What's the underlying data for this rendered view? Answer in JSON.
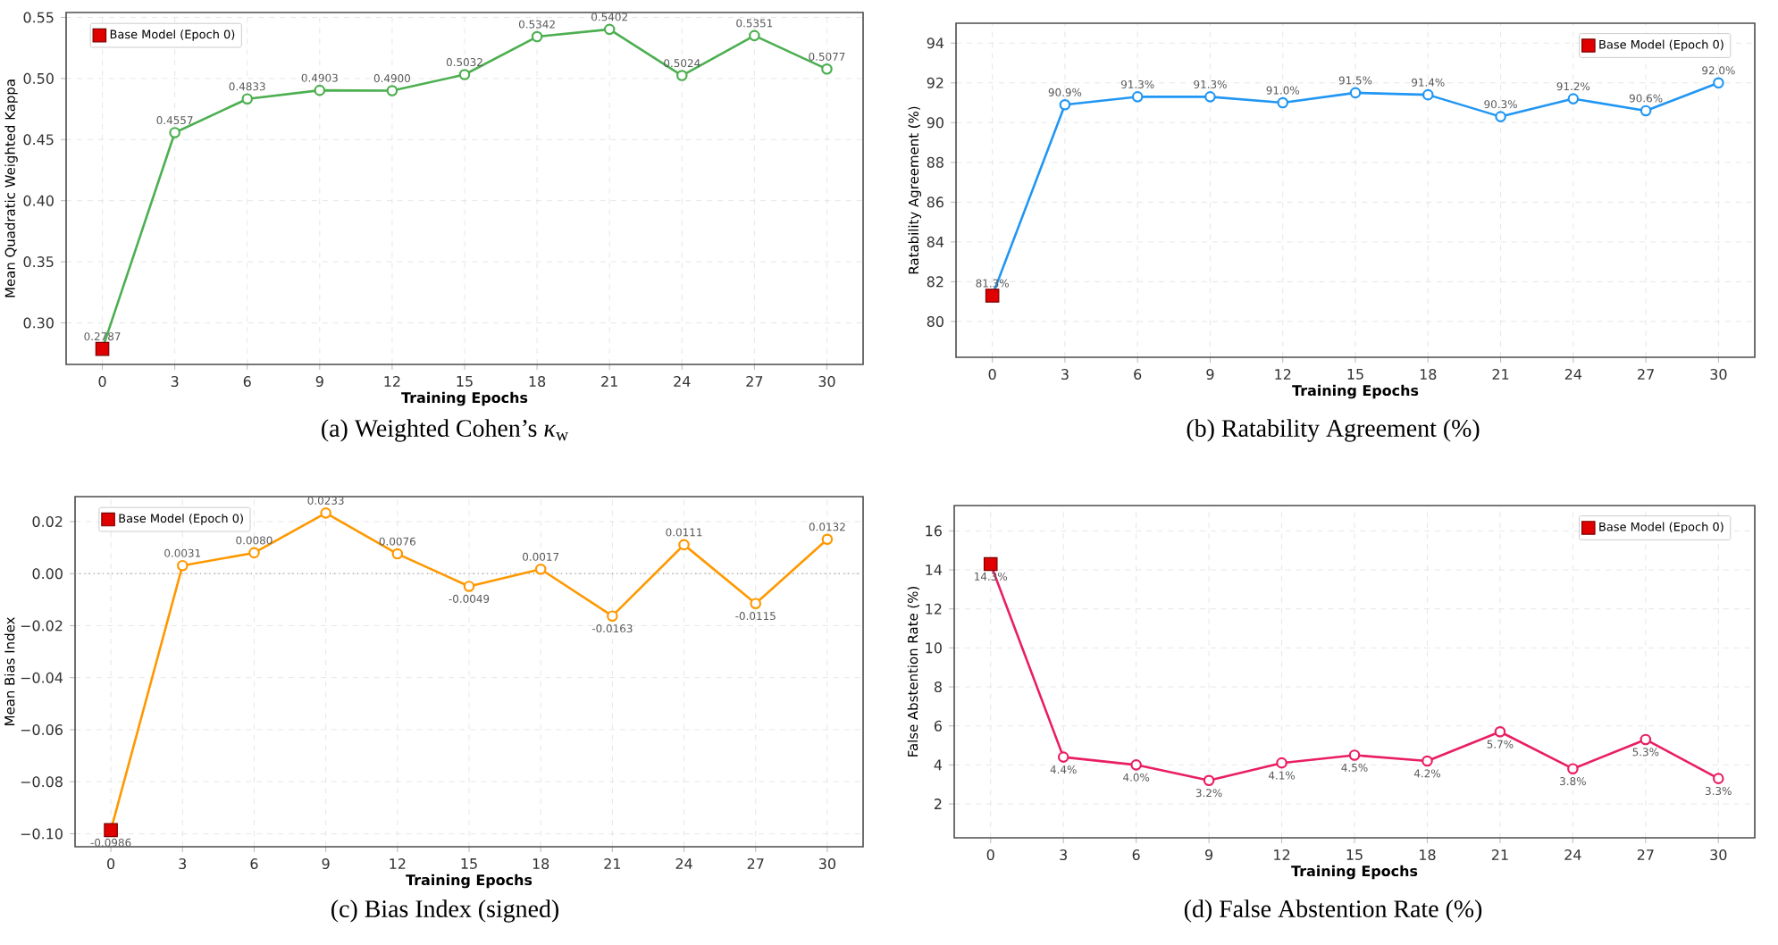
{
  "chart_data": [
    {
      "type": "line",
      "title": "(a) Weighted Cohen’s *κ*$_{w}$",
      "xlabel": "Training Epochs",
      "ylabel": "Mean Quadratic Weighted Kappa",
      "xlim": [
        -1.5,
        31.5
      ],
      "xticks": [
        0,
        3,
        6,
        9,
        12,
        15,
        18,
        21,
        24,
        27,
        30
      ],
      "ylim": [
        0.266,
        0.554
      ],
      "yticks": [
        {
          "value": 0.3,
          "label": "0.30"
        },
        {
          "value": 0.35,
          "label": "0.35"
        },
        {
          "value": 0.4,
          "label": "0.40"
        },
        {
          "value": 0.45,
          "label": "0.45"
        },
        {
          "value": 0.5,
          "label": "0.50"
        },
        {
          "value": 0.55,
          "label": "0.55"
        }
      ],
      "grid": true,
      "legend": "top left",
      "x": [
        0,
        3,
        6,
        9,
        12,
        15,
        18,
        21,
        24,
        27,
        30
      ],
      "series": [
        {
          "type": "line",
          "color": "#4caf50",
          "marker": "circle",
          "values": [
            0.2787,
            0.4557,
            0.4833,
            0.4903,
            0.49,
            0.5032,
            0.5342,
            0.5402,
            0.5024,
            0.5351,
            0.5077
          ],
          "value_labels": [
            null,
            "0.4557",
            "0.4833",
            "0.4903",
            "0.4900",
            "0.5032",
            "0.5342",
            "0.5402",
            "0.5024",
            "0.5351",
            "0.5077"
          ]
        },
        {
          "type": "scatter",
          "name": "Base Model (Epoch 0)",
          "color": "#e00000",
          "marker": "square",
          "values": [
            0.2787,
            null,
            null,
            null,
            null,
            null,
            null,
            null,
            null,
            null,
            null
          ],
          "value_labels": [
            "0.2787",
            null,
            null,
            null,
            null,
            null,
            null,
            null,
            null,
            null,
            null
          ]
        }
      ]
    },
    {
      "type": "line",
      "title": "(b) Ratability Agreement (%)",
      "xlabel": "Training Epochs",
      "ylabel": "Ratability Agreement (%)",
      "xlim": [
        -1.5,
        31.5
      ],
      "xticks": [
        0,
        3,
        6,
        9,
        12,
        15,
        18,
        21,
        24,
        27,
        30
      ],
      "ylim": [
        78.2,
        95.0
      ],
      "yticks": [
        80,
        82,
        84,
        86,
        88,
        90,
        92,
        94
      ],
      "grid": true,
      "legend": "top right",
      "x": [
        0,
        3,
        6,
        9,
        12,
        15,
        18,
        21,
        24,
        27,
        30
      ],
      "series": [
        {
          "type": "line",
          "color": "#2196f3",
          "marker": "circle",
          "values": [
            81.3,
            90.9,
            91.3,
            91.3,
            91.0,
            91.5,
            91.4,
            90.3,
            91.2,
            90.6,
            92.0
          ],
          "value_labels": [
            null,
            "90.9%",
            "91.3%",
            "91.3%",
            "91.0%",
            "91.5%",
            "91.4%",
            "90.3%",
            "91.2%",
            "90.6%",
            "92.0%"
          ]
        },
        {
          "type": "scatter",
          "name": "Base Model (Epoch 0)",
          "color": "#e00000",
          "marker": "square",
          "values": [
            81.3,
            null,
            null,
            null,
            null,
            null,
            null,
            null,
            null,
            null,
            null
          ],
          "value_labels": [
            "81.3%",
            null,
            null,
            null,
            null,
            null,
            null,
            null,
            null,
            null,
            null
          ]
        }
      ]
    },
    {
      "type": "line",
      "title": "(c) Bias Index (signed)",
      "xlabel": "Training Epochs",
      "ylabel": "Mean Bias Index",
      "xlim": [
        -1.5,
        31.5
      ],
      "xticks": [
        0,
        3,
        6,
        9,
        12,
        15,
        18,
        21,
        24,
        27,
        30
      ],
      "ylim": [
        -0.105,
        0.0296
      ],
      "yticks": [
        {
          "value": -0.1,
          "label": "−0.10"
        },
        {
          "value": -0.08,
          "label": "−0.08"
        },
        {
          "value": -0.06,
          "label": "−0.06"
        },
        {
          "value": -0.04,
          "label": "−0.04"
        },
        {
          "value": -0.02,
          "label": "−0.02"
        },
        {
          "value": 0,
          "label": "0.00"
        },
        {
          "value": 0.02,
          "label": "0.02"
        }
      ],
      "grid": true,
      "legend": "top left",
      "x": [
        0,
        3,
        6,
        9,
        12,
        15,
        18,
        21,
        24,
        27,
        30
      ],
      "ref_lines": [
        {
          "axis": "y",
          "value": 0,
          "color": "#999999",
          "line_style": "dotted"
        }
      ],
      "series": [
        {
          "type": "line",
          "color": "#ff9800",
          "marker": "circle",
          "values": [
            -0.0986,
            0.0031,
            0.008,
            0.0233,
            0.0076,
            -0.0049,
            0.0017,
            -0.0163,
            0.0111,
            -0.0115,
            0.0132
          ],
          "value_labels": [
            null,
            "0.0031",
            "0.0080",
            "0.0233",
            "0.0076",
            "-0.0049",
            "0.0017",
            "-0.0163",
            "0.0111",
            "-0.0115",
            "0.0132"
          ]
        },
        {
          "type": "scatter",
          "name": "Base Model (Epoch 0)",
          "color": "#e00000",
          "marker": "square",
          "values": [
            -0.0986,
            null,
            null,
            null,
            null,
            null,
            null,
            null,
            null,
            null,
            null
          ],
          "value_labels": [
            "-0.0986",
            null,
            null,
            null,
            null,
            null,
            null,
            null,
            null,
            null,
            null
          ]
        }
      ]
    },
    {
      "type": "line",
      "title": "(d) False Abstention Rate (%)",
      "xlabel": "Training Epochs",
      "ylabel": "False Abstention Rate (%)",
      "xlim": [
        -1.5,
        31.5
      ],
      "xticks": [
        0,
        3,
        6,
        9,
        12,
        15,
        18,
        21,
        24,
        27,
        30
      ],
      "ylim": [
        0.26,
        17.3
      ],
      "yticks": [
        2,
        4,
        6,
        8,
        10,
        12,
        14,
        16
      ],
      "grid": true,
      "legend": "top right",
      "x": [
        0,
        3,
        6,
        9,
        12,
        15,
        18,
        21,
        24,
        27,
        30
      ],
      "series": [
        {
          "type": "line",
          "color": "#e91e63",
          "marker": "circle",
          "values": [
            14.3,
            4.4,
            4.0,
            3.2,
            4.1,
            4.5,
            4.2,
            5.7,
            3.8,
            5.3,
            3.3
          ],
          "value_labels": [
            null,
            "4.4%",
            "4.0%",
            "3.2%",
            "4.1%",
            "4.5%",
            "4.2%",
            "5.7%",
            "3.8%",
            "5.3%",
            "3.3%"
          ]
        },
        {
          "type": "scatter",
          "name": "Base Model (Epoch 0)",
          "color": "#e00000",
          "marker": "square",
          "values": [
            14.3,
            null,
            null,
            null,
            null,
            null,
            null,
            null,
            null,
            null,
            null
          ],
          "value_labels": [
            "14.3%",
            null,
            null,
            null,
            null,
            null,
            null,
            null,
            null,
            null,
            null
          ]
        }
      ]
    }
  ]
}
